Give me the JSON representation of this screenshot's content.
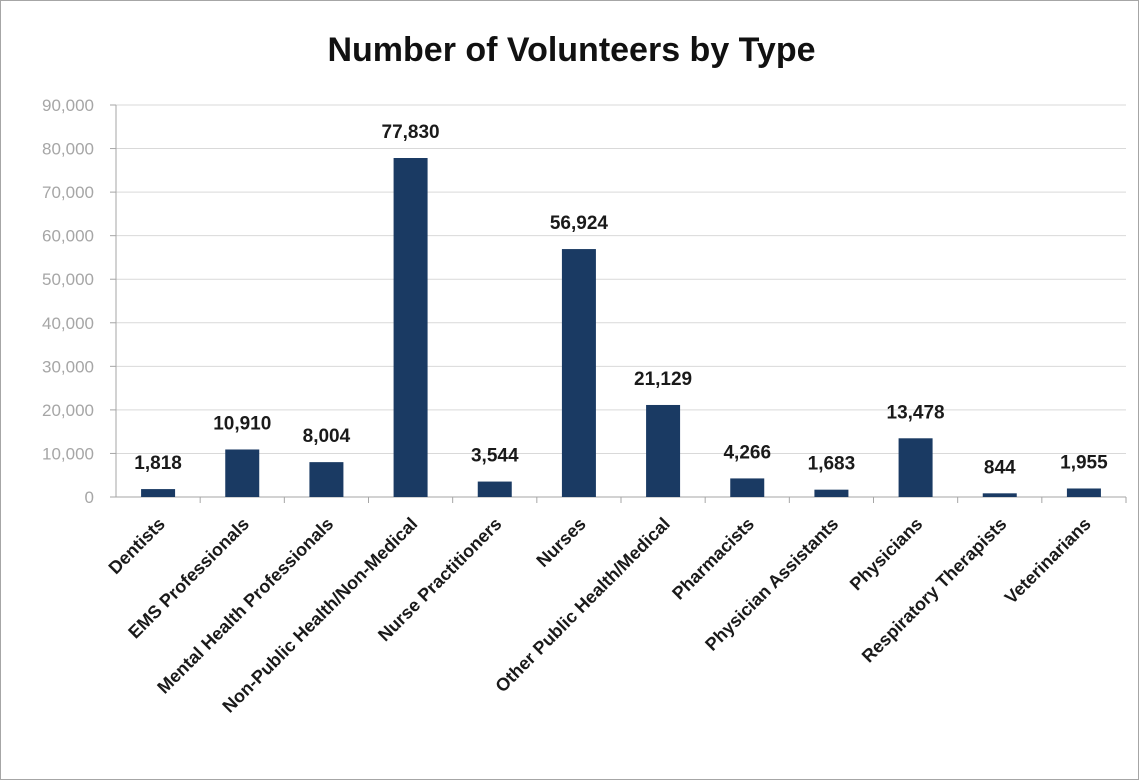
{
  "chart_data": {
    "type": "bar",
    "title": "Number of Volunteers by Type",
    "categories": [
      "Dentists",
      "EMS Professionals",
      "Mental Health Professionals",
      "Non-Public Health/Non-Medical",
      "Nurse Practitioners",
      "Nurses",
      "Other Public Health/Medical",
      "Pharmacists",
      "Physician Assistants",
      "Physicians",
      "Respiratory Therapists",
      "Veterinarians"
    ],
    "values": [
      1818,
      10910,
      8004,
      77830,
      3544,
      56924,
      21129,
      4266,
      1683,
      13478,
      844,
      1955
    ],
    "data_labels": [
      "1,818",
      "10,910",
      "8,004",
      "77,830",
      "3,544",
      "56,924",
      "21,129",
      "4,266",
      "1,683",
      "13,478",
      "844",
      "1,955"
    ],
    "y_ticks": [
      "0",
      "10,000",
      "20,000",
      "30,000",
      "40,000",
      "50,000",
      "60,000",
      "70,000",
      "80,000",
      "90,000"
    ],
    "ylim": [
      0,
      90000
    ],
    "ytick_step": 10000,
    "grid": true,
    "legend": "none",
    "colors": {
      "bar": "#1a3a63",
      "grid": "#d9d9d9",
      "axis": "#a6a6a6"
    }
  }
}
